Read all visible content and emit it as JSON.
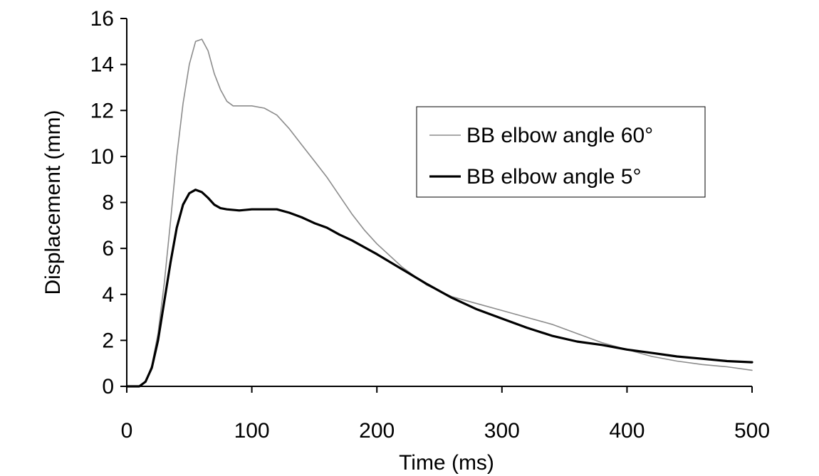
{
  "chart_data": {
    "type": "line",
    "title": "",
    "xlabel": "Time (ms)",
    "ylabel": "Displacement (mm)",
    "xlim": [
      0,
      500
    ],
    "ylim": [
      0,
      16
    ],
    "xticks": [
      0,
      100,
      200,
      300,
      400,
      500
    ],
    "yticks": [
      0,
      2,
      4,
      6,
      8,
      10,
      12,
      14,
      16
    ],
    "grid": false,
    "legend_position": "upper-right",
    "series": [
      {
        "name": "BB elbow angle 60°",
        "color": "#8c8c8c",
        "x": [
          0,
          10,
          15,
          20,
          25,
          30,
          35,
          40,
          45,
          50,
          55,
          60,
          65,
          70,
          75,
          80,
          85,
          90,
          100,
          110,
          120,
          130,
          140,
          150,
          160,
          170,
          180,
          190,
          200,
          220,
          240,
          260,
          280,
          300,
          320,
          340,
          360,
          380,
          400,
          420,
          440,
          460,
          480,
          500
        ],
        "y": [
          0,
          0,
          0.2,
          0.9,
          2.3,
          4.5,
          7.2,
          10,
          12.3,
          14,
          15,
          15.1,
          14.6,
          13.6,
          12.9,
          12.4,
          12.2,
          12.2,
          12.2,
          12.1,
          11.8,
          11.2,
          10.5,
          9.8,
          9.1,
          8.3,
          7.5,
          6.8,
          6.2,
          5.2,
          4.4,
          3.9,
          3.6,
          3.3,
          3,
          2.7,
          2.3,
          1.9,
          1.6,
          1.3,
          1.1,
          0.95,
          0.85,
          0.7
        ]
      },
      {
        "name": "BB elbow angle 5°",
        "color": "#000000",
        "x": [
          0,
          10,
          15,
          20,
          25,
          30,
          35,
          40,
          45,
          50,
          55,
          60,
          65,
          70,
          75,
          80,
          90,
          100,
          110,
          120,
          130,
          140,
          150,
          160,
          170,
          180,
          190,
          200,
          220,
          240,
          260,
          280,
          300,
          320,
          340,
          360,
          380,
          400,
          420,
          440,
          460,
          480,
          500
        ],
        "y": [
          0,
          0,
          0.2,
          0.8,
          2,
          3.7,
          5.4,
          6.9,
          7.9,
          8.4,
          8.55,
          8.45,
          8.2,
          7.9,
          7.75,
          7.7,
          7.65,
          7.7,
          7.7,
          7.7,
          7.55,
          7.35,
          7.1,
          6.9,
          6.6,
          6.35,
          6.05,
          5.75,
          5.1,
          4.45,
          3.85,
          3.35,
          2.95,
          2.55,
          2.2,
          1.95,
          1.8,
          1.6,
          1.45,
          1.3,
          1.2,
          1.1,
          1.05
        ]
      }
    ]
  }
}
